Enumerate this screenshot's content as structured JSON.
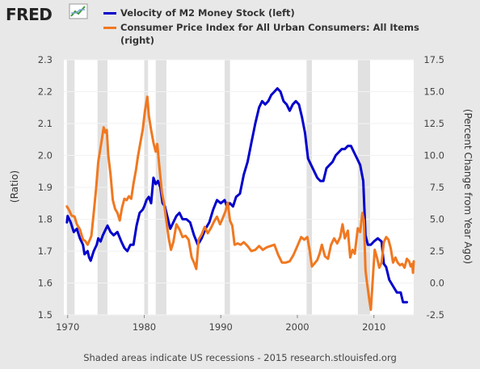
{
  "header": {
    "logo_text": "FRED",
    "logo_icon": "trend-chart-icon"
  },
  "legend": [
    {
      "label": "Velocity of M2 Money Stock (left)",
      "color": "#0000cc"
    },
    {
      "label": "Consumer Price Index for All Urban Consumers: All Items",
      "label2": "(right)",
      "color": "#f07820"
    }
  ],
  "footer": "Shaded areas indicate US recessions - 2015 research.stlouisfed.org",
  "chart_data": {
    "type": "line",
    "ylabel_left": "(Ratio)",
    "ylabel_right": "(Percent Change from Year Ago)",
    "xlim": [
      1969.5,
      2015.2
    ],
    "ylim_left": [
      1.5,
      2.3
    ],
    "ylim_right": [
      -2.5,
      17.5
    ],
    "x_ticks": [
      "1970",
      "1980",
      "1990",
      "2000",
      "2010"
    ],
    "y_ticks_left": [
      "1.5",
      "1.6",
      "1.7",
      "1.8",
      "1.9",
      "2.0",
      "2.1",
      "2.2",
      "2.3"
    ],
    "y_ticks_right": [
      "-2.5",
      "0.0",
      "2.5",
      "5.0",
      "7.5",
      "10.0",
      "12.5",
      "15.0",
      "17.5"
    ],
    "recessions": [
      [
        1969.9,
        1970.9
      ],
      [
        1973.9,
        1975.2
      ],
      [
        1980.0,
        1980.5
      ],
      [
        1981.5,
        1982.9
      ],
      [
        1990.5,
        1991.2
      ],
      [
        2001.2,
        2001.9
      ],
      [
        2007.9,
        2009.5
      ]
    ],
    "series": [
      {
        "name": "Velocity of M2 Money Stock (left)",
        "axis": "left",
        "color": "#0000cc",
        "points": [
          [
            1969.9,
            1.79
          ],
          [
            1970.0,
            1.81
          ],
          [
            1970.4,
            1.79
          ],
          [
            1970.8,
            1.76
          ],
          [
            1971.2,
            1.77
          ],
          [
            1971.6,
            1.74
          ],
          [
            1972.0,
            1.72
          ],
          [
            1972.2,
            1.69
          ],
          [
            1972.6,
            1.7
          ],
          [
            1972.8,
            1.68
          ],
          [
            1973.0,
            1.67
          ],
          [
            1973.4,
            1.7
          ],
          [
            1973.8,
            1.72
          ],
          [
            1974.0,
            1.74
          ],
          [
            1974.3,
            1.73
          ],
          [
            1974.6,
            1.75
          ],
          [
            1975.0,
            1.77
          ],
          [
            1975.2,
            1.78
          ],
          [
            1975.6,
            1.76
          ],
          [
            1976.0,
            1.75
          ],
          [
            1976.5,
            1.76
          ],
          [
            1977.0,
            1.73
          ],
          [
            1977.4,
            1.71
          ],
          [
            1977.8,
            1.7
          ],
          [
            1978.2,
            1.72
          ],
          [
            1978.6,
            1.72
          ],
          [
            1979.0,
            1.78
          ],
          [
            1979.4,
            1.82
          ],
          [
            1979.8,
            1.83
          ],
          [
            1980.0,
            1.84
          ],
          [
            1980.3,
            1.86
          ],
          [
            1980.6,
            1.87
          ],
          [
            1980.9,
            1.85
          ],
          [
            1981.2,
            1.93
          ],
          [
            1981.5,
            1.91
          ],
          [
            1981.8,
            1.92
          ],
          [
            1982.1,
            1.9
          ],
          [
            1982.4,
            1.85
          ],
          [
            1982.7,
            1.84
          ],
          [
            1983.0,
            1.81
          ],
          [
            1983.4,
            1.77
          ],
          [
            1983.8,
            1.79
          ],
          [
            1984.2,
            1.81
          ],
          [
            1984.6,
            1.82
          ],
          [
            1985.0,
            1.8
          ],
          [
            1985.5,
            1.8
          ],
          [
            1986.0,
            1.79
          ],
          [
            1986.5,
            1.75
          ],
          [
            1987.0,
            1.72
          ],
          [
            1987.5,
            1.74
          ],
          [
            1988.0,
            1.77
          ],
          [
            1988.5,
            1.79
          ],
          [
            1989.0,
            1.83
          ],
          [
            1989.5,
            1.86
          ],
          [
            1990.0,
            1.85
          ],
          [
            1990.5,
            1.86
          ],
          [
            1990.8,
            1.84
          ],
          [
            1991.2,
            1.85
          ],
          [
            1991.6,
            1.84
          ],
          [
            1992.0,
            1.87
          ],
          [
            1992.5,
            1.88
          ],
          [
            1993.0,
            1.94
          ],
          [
            1993.5,
            1.98
          ],
          [
            1994.0,
            2.04
          ],
          [
            1994.5,
            2.1
          ],
          [
            1995.0,
            2.15
          ],
          [
            1995.4,
            2.17
          ],
          [
            1995.8,
            2.16
          ],
          [
            1996.2,
            2.17
          ],
          [
            1996.6,
            2.19
          ],
          [
            1997.0,
            2.2
          ],
          [
            1997.4,
            2.21
          ],
          [
            1997.8,
            2.2
          ],
          [
            1998.2,
            2.17
          ],
          [
            1998.6,
            2.16
          ],
          [
            1999.0,
            2.14
          ],
          [
            1999.4,
            2.16
          ],
          [
            1999.8,
            2.17
          ],
          [
            2000.2,
            2.16
          ],
          [
            2000.6,
            2.12
          ],
          [
            2001.0,
            2.07
          ],
          [
            2001.4,
            1.99
          ],
          [
            2001.8,
            1.97
          ],
          [
            2002.2,
            1.95
          ],
          [
            2002.6,
            1.93
          ],
          [
            2003.0,
            1.92
          ],
          [
            2003.4,
            1.92
          ],
          [
            2003.8,
            1.96
          ],
          [
            2004.2,
            1.97
          ],
          [
            2004.6,
            1.98
          ],
          [
            2005.0,
            2.0
          ],
          [
            2005.4,
            2.01
          ],
          [
            2005.8,
            2.02
          ],
          [
            2006.2,
            2.02
          ],
          [
            2006.6,
            2.03
          ],
          [
            2007.0,
            2.03
          ],
          [
            2007.4,
            2.01
          ],
          [
            2007.8,
            1.99
          ],
          [
            2008.2,
            1.97
          ],
          [
            2008.6,
            1.92
          ],
          [
            2008.9,
            1.75
          ],
          [
            2009.2,
            1.72
          ],
          [
            2009.6,
            1.72
          ],
          [
            2010.0,
            1.73
          ],
          [
            2010.5,
            1.74
          ],
          [
            2011.0,
            1.73
          ],
          [
            2011.3,
            1.66
          ],
          [
            2011.6,
            1.65
          ],
          [
            2012.0,
            1.61
          ],
          [
            2012.5,
            1.59
          ],
          [
            2013.0,
            1.57
          ],
          [
            2013.5,
            1.57
          ],
          [
            2013.8,
            1.54
          ],
          [
            2014.3,
            1.54
          ]
        ]
      },
      {
        "name": "Consumer Price Index for All Urban Consumers: All Items (right)",
        "axis": "right",
        "color": "#f07820",
        "points": [
          [
            1969.9,
            6.0
          ],
          [
            1970.2,
            5.7
          ],
          [
            1970.5,
            5.3
          ],
          [
            1970.9,
            5.2
          ],
          [
            1971.2,
            4.6
          ],
          [
            1971.6,
            4.2
          ],
          [
            1972.0,
            3.4
          ],
          [
            1972.3,
            3.3
          ],
          [
            1972.6,
            3.0
          ],
          [
            1972.9,
            3.4
          ],
          [
            1973.1,
            3.7
          ],
          [
            1973.4,
            5.5
          ],
          [
            1973.7,
            7.3
          ],
          [
            1974.0,
            9.5
          ],
          [
            1974.4,
            11.0
          ],
          [
            1974.7,
            12.2
          ],
          [
            1974.9,
            11.8
          ],
          [
            1975.1,
            12.0
          ],
          [
            1975.3,
            10.0
          ],
          [
            1975.6,
            8.5
          ],
          [
            1975.9,
            6.5
          ],
          [
            1976.2,
            5.8
          ],
          [
            1976.5,
            5.5
          ],
          [
            1976.8,
            4.9
          ],
          [
            1977.1,
            5.9
          ],
          [
            1977.4,
            6.6
          ],
          [
            1977.7,
            6.5
          ],
          [
            1978.0,
            6.8
          ],
          [
            1978.3,
            6.6
          ],
          [
            1978.6,
            7.8
          ],
          [
            1978.9,
            8.8
          ],
          [
            1979.2,
            10.0
          ],
          [
            1979.5,
            11.0
          ],
          [
            1979.8,
            12.0
          ],
          [
            1980.1,
            13.5
          ],
          [
            1980.4,
            14.6
          ],
          [
            1980.6,
            13.1
          ],
          [
            1980.9,
            12.0
          ],
          [
            1981.2,
            11.0
          ],
          [
            1981.5,
            10.3
          ],
          [
            1981.7,
            10.9
          ],
          [
            1982.0,
            9.0
          ],
          [
            1982.3,
            7.1
          ],
          [
            1982.6,
            6.2
          ],
          [
            1982.9,
            4.8
          ],
          [
            1983.2,
            3.5
          ],
          [
            1983.5,
            2.6
          ],
          [
            1983.8,
            3.2
          ],
          [
            1984.2,
            4.6
          ],
          [
            1984.6,
            4.2
          ],
          [
            1985.0,
            3.6
          ],
          [
            1985.4,
            3.7
          ],
          [
            1985.8,
            3.4
          ],
          [
            1986.2,
            2.0
          ],
          [
            1986.5,
            1.6
          ],
          [
            1986.8,
            1.1
          ],
          [
            1987.1,
            3.4
          ],
          [
            1987.5,
            3.8
          ],
          [
            1987.9,
            4.4
          ],
          [
            1988.3,
            3.9
          ],
          [
            1988.7,
            4.3
          ],
          [
            1989.1,
            4.8
          ],
          [
            1989.5,
            5.2
          ],
          [
            1989.9,
            4.6
          ],
          [
            1990.2,
            5.0
          ],
          [
            1990.6,
            5.6
          ],
          [
            1990.9,
            6.3
          ],
          [
            1991.2,
            4.9
          ],
          [
            1991.5,
            4.5
          ],
          [
            1991.8,
            3.0
          ],
          [
            1992.2,
            3.1
          ],
          [
            1992.6,
            3.0
          ],
          [
            1993.0,
            3.2
          ],
          [
            1993.5,
            2.9
          ],
          [
            1994.0,
            2.5
          ],
          [
            1994.5,
            2.6
          ],
          [
            1995.0,
            2.9
          ],
          [
            1995.5,
            2.6
          ],
          [
            1996.0,
            2.8
          ],
          [
            1996.5,
            2.9
          ],
          [
            1997.0,
            3.0
          ],
          [
            1997.5,
            2.2
          ],
          [
            1998.0,
            1.6
          ],
          [
            1998.5,
            1.6
          ],
          [
            1999.0,
            1.7
          ],
          [
            1999.5,
            2.2
          ],
          [
            2000.0,
            2.9
          ],
          [
            2000.5,
            3.6
          ],
          [
            2000.9,
            3.4
          ],
          [
            2001.3,
            3.6
          ],
          [
            2001.6,
            2.6
          ],
          [
            2001.9,
            1.3
          ],
          [
            2002.2,
            1.5
          ],
          [
            2002.6,
            1.8
          ],
          [
            2002.9,
            2.3
          ],
          [
            2003.2,
            3.0
          ],
          [
            2003.6,
            2.1
          ],
          [
            2004.0,
            1.9
          ],
          [
            2004.4,
            3.0
          ],
          [
            2004.8,
            3.5
          ],
          [
            2005.2,
            3.1
          ],
          [
            2005.6,
            3.6
          ],
          [
            2005.9,
            4.6
          ],
          [
            2006.2,
            3.5
          ],
          [
            2006.6,
            4.1
          ],
          [
            2006.9,
            2.0
          ],
          [
            2007.2,
            2.6
          ],
          [
            2007.5,
            2.3
          ],
          [
            2007.9,
            4.3
          ],
          [
            2008.2,
            4.0
          ],
          [
            2008.5,
            5.5
          ],
          [
            2008.7,
            4.9
          ],
          [
            2008.9,
            1.0
          ],
          [
            2009.1,
            0.0
          ],
          [
            2009.4,
            -1.3
          ],
          [
            2009.6,
            -2.1
          ],
          [
            2009.9,
            0.8
          ],
          [
            2010.1,
            2.6
          ],
          [
            2010.4,
            2.0
          ],
          [
            2010.7,
            1.2
          ],
          [
            2011.0,
            1.6
          ],
          [
            2011.3,
            3.2
          ],
          [
            2011.6,
            3.6
          ],
          [
            2011.9,
            3.4
          ],
          [
            2012.2,
            2.7
          ],
          [
            2012.5,
            1.6
          ],
          [
            2012.8,
            2.0
          ],
          [
            2013.1,
            1.6
          ],
          [
            2013.4,
            1.4
          ],
          [
            2013.7,
            1.5
          ],
          [
            2014.0,
            1.2
          ],
          [
            2014.3,
            1.9
          ],
          [
            2014.6,
            1.7
          ],
          [
            2014.8,
            1.3
          ],
          [
            2015.0,
            1.5
          ],
          [
            2015.1,
            0.8
          ],
          [
            2015.2,
            1.7
          ]
        ]
      }
    ]
  }
}
